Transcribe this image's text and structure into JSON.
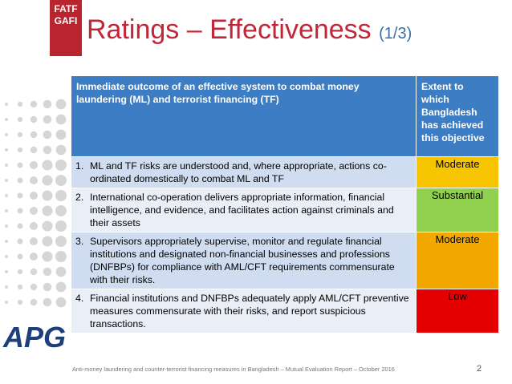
{
  "logo": {
    "top": "FATF",
    "bottom": "GAFI",
    "apg": "APG"
  },
  "header": {
    "title": "Ratings – Effectiveness",
    "subtitle": "(1/3)"
  },
  "table": {
    "columns": [
      "Immediate outcome of an effective system to combat money laundering (ML) and terrorist financing (TF)",
      "Extent to which Bangladesh has achieved this objective"
    ],
    "rows": [
      {
        "number": "1.",
        "outcome": "ML and TF risks are understood and, where appropriate, actions co-ordinated domestically to combat ML and TF",
        "rating": "Moderate",
        "color": "#f6c400"
      },
      {
        "number": "2.",
        "outcome": "International co-operation delivers appropriate information, financial intelligence, and evidence, and facilitates action against criminals and  their assets",
        "rating": "Substantial",
        "color": "#92d050"
      },
      {
        "number": "3.",
        "outcome": "Supervisors appropriately supervise, monitor and regulate financial institutions and designated non-financial businesses and professions (DNFBPs) for compliance with AML/CFT requirements commensurate with their risks.",
        "rating": "Moderate",
        "color": "#f3a800"
      },
      {
        "number": "4.",
        "outcome": "Financial institutions and DNFBPs adequately apply AML/CFT preventive measures commensurate with their risks, and report suspicious transactions.",
        "rating": "Low",
        "color": "#e30000"
      }
    ]
  },
  "footer": {
    "text": "Anti-money laundering and counter-terrorist financing measures in Bangladesh – Mutual Evaluation Report – October 2016",
    "page": "2"
  }
}
